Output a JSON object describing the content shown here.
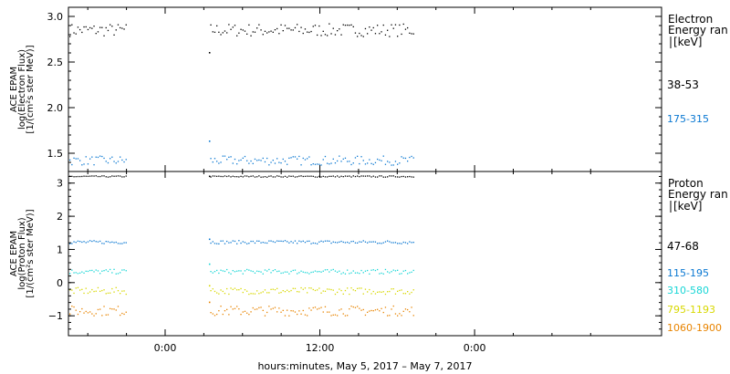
{
  "chart_data": [
    {
      "type": "scatter",
      "panel": "electron",
      "ylabel_lines": [
        "ACE EPAM",
        "log(Electron Flux)",
        "[1/(cm²s ster MeV)]"
      ],
      "ylim": [
        1.3,
        3.1
      ],
      "yticks": [
        1.5,
        2.0,
        2.5,
        3.0
      ],
      "ytick_labels": [
        "1.5",
        "2.0",
        "2.5",
        "3.0"
      ],
      "legend_title": [
        "Electron",
        "Energy ran",
        "[keV]"
      ],
      "series": [
        {
          "name": "38-53",
          "color": "#000000",
          "level": 2.85,
          "spread": 0.07,
          "spike": 2.6
        },
        {
          "name": "175-315",
          "color": "#0a78d2",
          "level": 1.42,
          "spread": 0.05,
          "spike": 1.63
        }
      ]
    },
    {
      "type": "scatter",
      "panel": "proton",
      "ylabel_lines": [
        "ACE EPAM",
        "log(Proton Flux)",
        "[1/(cm²s ster MeV)]"
      ],
      "ylim": [
        -1.6,
        3.35
      ],
      "yticks": [
        -1,
        0,
        1,
        2,
        3
      ],
      "ytick_labels": [
        "−1",
        "0",
        "1",
        "2",
        "3"
      ],
      "legend_title": [
        "Proton",
        "Energy ran",
        "[keV]"
      ],
      "series": [
        {
          "name": "47-68",
          "color": "#000000",
          "level": 3.2,
          "spread": 0.02,
          "spike": 3.2
        },
        {
          "name": "115-195",
          "color": "#0a78d2",
          "level": 1.22,
          "spread": 0.05,
          "spike": 1.3
        },
        {
          "name": "310-580",
          "color": "#18d6d6",
          "level": 0.33,
          "spread": 0.07,
          "spike": 0.55
        },
        {
          "name": "795-1193",
          "color": "#d8d800",
          "level": -0.25,
          "spread": 0.1,
          "spike": -0.1
        },
        {
          "name": "1060-1900",
          "color": "#e88400",
          "level": -0.85,
          "spread": 0.15,
          "spike": -0.6
        }
      ]
    }
  ],
  "time_axis": {
    "xlabel": "hours:minutes, May  5, 2017 – May  7, 2017",
    "range_hours": [
      -7.5,
      38.5
    ],
    "ticks": [
      0,
      12,
      24
    ],
    "tick_labels": [
      "0:00",
      "12:00",
      "0:00"
    ],
    "data_segments": [
      [
        -7.5,
        -3.0
      ],
      [
        3.5,
        19.3
      ]
    ]
  }
}
